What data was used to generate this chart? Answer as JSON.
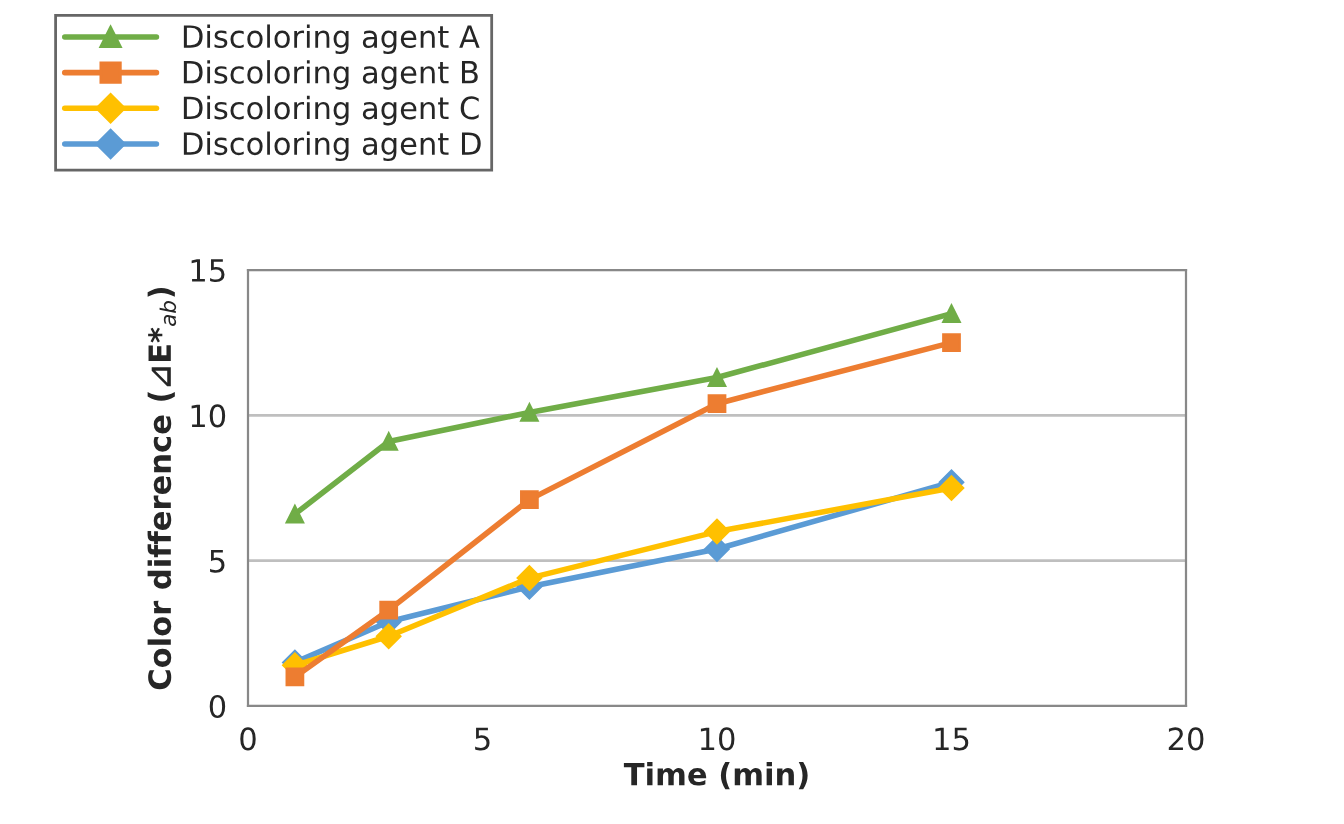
{
  "chart_data": {
    "type": "line",
    "xlabel": "Time (min)",
    "ylabel": "Color difference (⊿E*$_{ab}$)",
    "x": [
      1,
      3,
      6,
      10,
      15
    ],
    "series": [
      {
        "name": "Discoloring agent A",
        "color": "#70ad47",
        "marker": "triangle",
        "values": [
          6.6,
          9.1,
          10.1,
          11.3,
          13.5
        ]
      },
      {
        "name": "Discoloring agent B",
        "color": "#ed7d31",
        "marker": "square",
        "values": [
          1.0,
          3.3,
          7.1,
          10.4,
          12.5
        ]
      },
      {
        "name": "Discoloring agent C",
        "color": "#ffc000",
        "marker": "diamond",
        "values": [
          1.4,
          2.4,
          4.4,
          6.0,
          7.5
        ]
      },
      {
        "name": "Discoloring agent D",
        "color": "#5b9bd5",
        "marker": "diamond",
        "values": [
          1.5,
          2.9,
          4.1,
          5.4,
          7.7
        ]
      }
    ],
    "xlim": [
      0,
      20
    ],
    "xticks": [
      0,
      5,
      10,
      15,
      20
    ],
    "ylim": [
      0,
      15
    ],
    "yticks": [
      0,
      5,
      10,
      15
    ],
    "grid": "y",
    "legend": "top left"
  }
}
